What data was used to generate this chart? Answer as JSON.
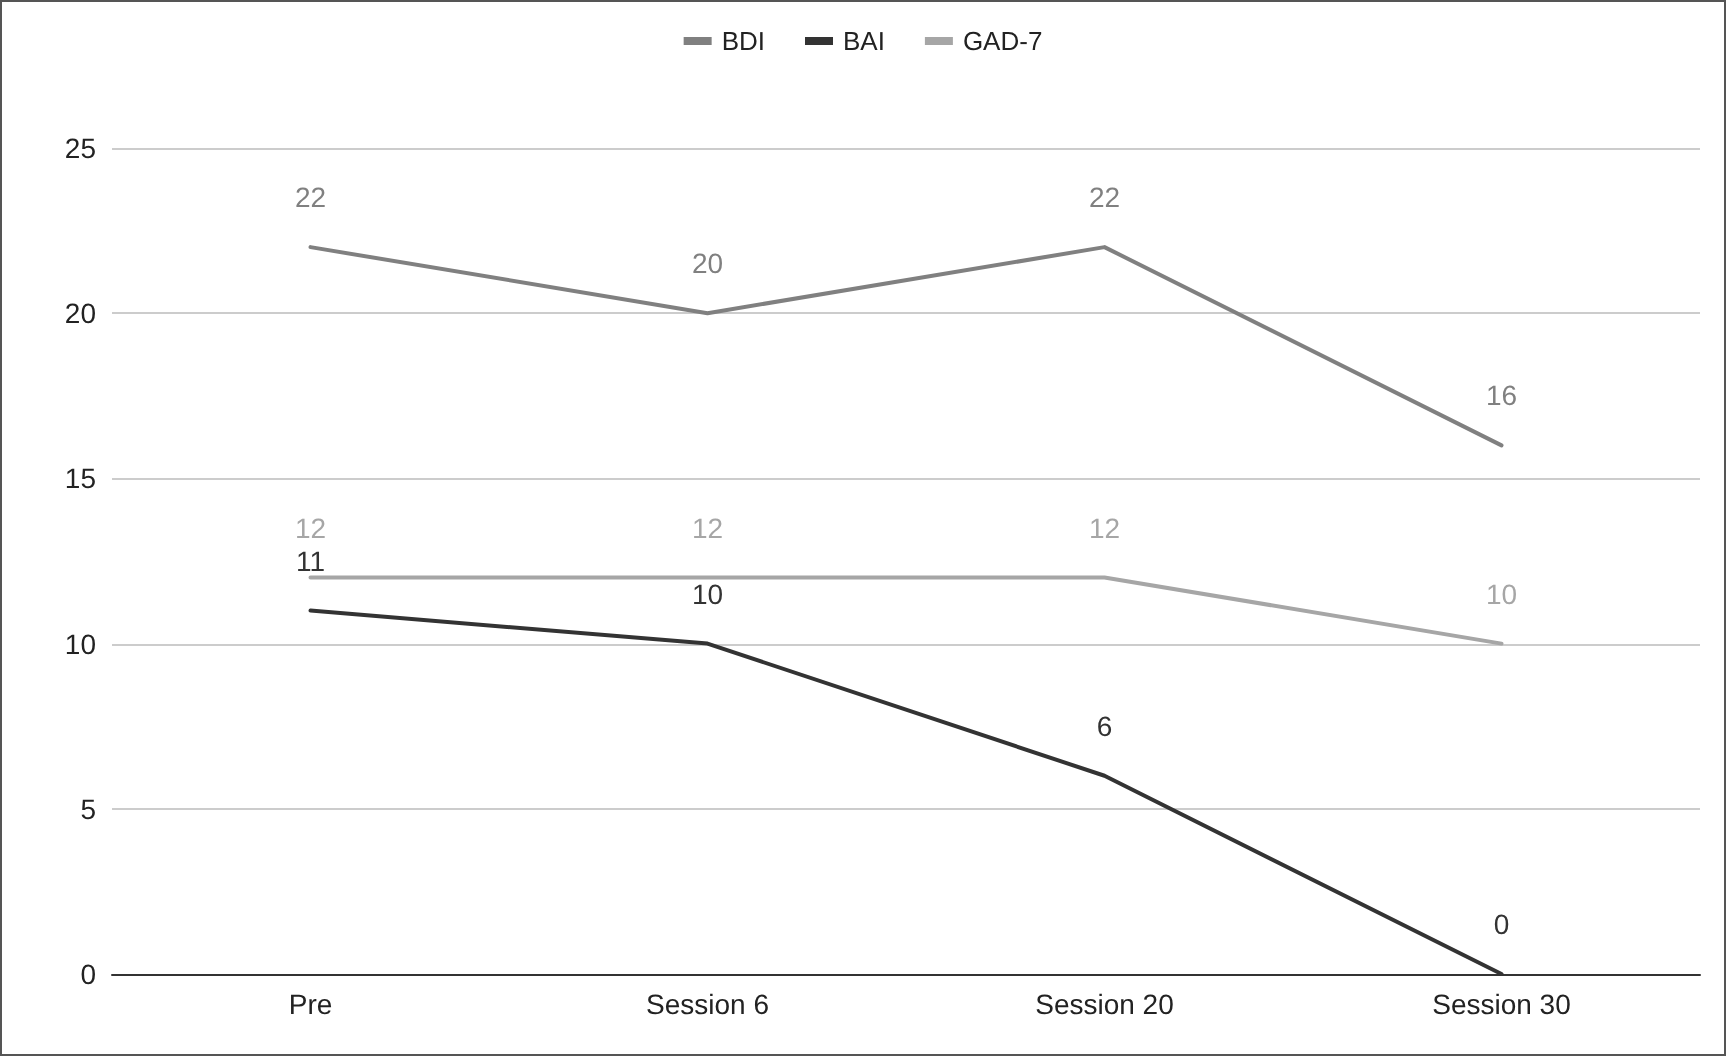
{
  "chart_data": {
    "type": "line",
    "categories": [
      "Pre",
      "Session 6",
      "Session 20",
      "Session 30"
    ],
    "series": [
      {
        "name": "BDI",
        "color": "#808080",
        "values": [
          22,
          20,
          22,
          16
        ]
      },
      {
        "name": "BAI",
        "color": "#333333",
        "values": [
          11,
          10,
          6,
          0
        ]
      },
      {
        "name": "GAD-7",
        "color": "#a6a6a6",
        "values": [
          12,
          12,
          12,
          10
        ]
      }
    ],
    "ylim": [
      0,
      25
    ],
    "yticks": [
      0,
      5,
      10,
      15,
      20,
      25
    ],
    "grid": "y",
    "legend": "top",
    "data_labels": true,
    "marker": "none",
    "line_style": "solid"
  }
}
